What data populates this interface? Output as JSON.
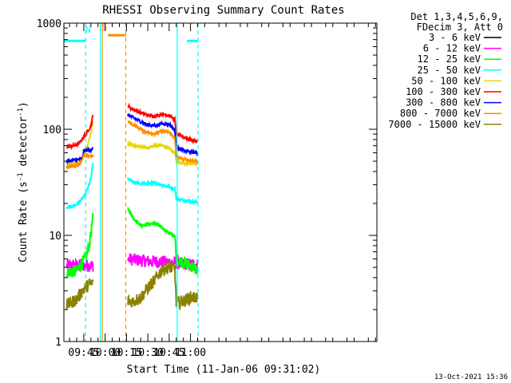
{
  "chart_data": {
    "type": "line",
    "title": "RHESSI Observing Summary Count Rates",
    "xlabel": "Start Time (11-Jan-06 09:31:02)",
    "ylabel_main": "Count Rate (s",
    "ylabel_sup1": "-1",
    "ylabel_mid": " detector",
    "ylabel_sup2": "-1",
    "ylabel_end": ")",
    "yscale": "log",
    "ylim": [
      1,
      1000
    ],
    "xlim_min": [
      571,
      791
    ],
    "yticks": [
      {
        "value": 1,
        "label": "1"
      },
      {
        "value": 10,
        "label": "10"
      },
      {
        "value": 100,
        "label": "100"
      },
      {
        "value": 1000,
        "label": "1000"
      }
    ],
    "xticks": [
      {
        "min": 585,
        "label": "09:45"
      },
      {
        "min": 600,
        "label": "10:00"
      },
      {
        "min": 615,
        "label": "10:15"
      },
      {
        "min": 630,
        "label": "10:30"
      },
      {
        "min": 645,
        "label": "10:45"
      },
      {
        "min": 660,
        "label": "11:00"
      }
    ],
    "legend_header": [
      "Det 1,3,4,5,6,9,",
      "FDecim 3, Att 0"
    ],
    "series": [
      {
        "name": "3 - 6 keV",
        "color": "#000000",
        "segments": []
      },
      {
        "name": "6 - 12 keV",
        "color": "#ff00ff",
        "segments": [
          {
            "x": [
              573,
              585,
              588,
              590,
              591.5
            ],
            "y": [
              5.2,
              5.2,
              5.2,
              5.2,
              5.2
            ]
          },
          {
            "x": [
              616,
              630,
              645,
              655,
              665
            ],
            "y": [
              6.0,
              5.7,
              5.6,
              5.4,
              5.3
            ]
          }
        ]
      },
      {
        "name": "12 - 25 keV",
        "color": "#00ff00",
        "segments": [
          {
            "x": [
              573,
              580,
              584,
              587,
              589,
              590.5,
              591.5
            ],
            "y": [
              4.5,
              4.6,
              5.5,
              6.5,
              8.5,
              11.5,
              16
            ]
          },
          {
            "x": [
              616,
              620,
              625,
              630,
              635,
              640,
              645,
              649,
              650,
              655,
              660,
              665
            ],
            "y": [
              18,
              14.5,
              12.5,
              12.7,
              13.0,
              11.8,
              10.5,
              9.8,
              6.0,
              5.6,
              5.2,
              4.7
            ]
          }
        ]
      },
      {
        "name": "25 - 50 keV",
        "color": "#00ffff",
        "segments": [
          {
            "x": [
              573,
              580,
              583,
              586,
              588,
              590,
              591.5
            ],
            "y": [
              18,
              19.5,
              21.5,
              24,
              28,
              34,
              48
            ]
          },
          {
            "x": [
              616,
              620,
              625,
              630,
              635,
              640,
              645,
              649,
              650,
              655,
              660,
              665
            ],
            "y": [
              34,
              32,
              30.5,
              31,
              31,
              30,
              28.5,
              27.5,
              22,
              21.5,
              21,
              20.5
            ]
          }
        ]
      },
      {
        "name": "50 - 100 keV",
        "color": "#e6d600",
        "segments": [
          {
            "x": [
              573,
              578,
              582,
              585,
              587,
              589,
              590.5,
              591.5
            ],
            "y": [
              46,
              48,
              50,
              57,
              67,
              82,
              100,
              120
            ]
          },
          {
            "x": [
              616,
              620,
              625,
              630,
              635,
              640,
              645,
              649,
              650,
              655,
              660,
              665
            ],
            "y": [
              73,
              70,
              68,
              67,
              70,
              70.5,
              66,
              60,
              50,
              48,
              47.5,
              47
            ]
          }
        ]
      },
      {
        "name": "100 - 300 keV",
        "color": "#ff0000",
        "segments": [
          {
            "x": [
              573,
              578,
              582,
              585,
              588,
              590,
              591.5
            ],
            "y": [
              68,
              70,
              74,
              85,
              97,
              108,
              135
            ]
          },
          {
            "x": [
              616,
              620,
              625,
              630,
              635,
              640,
              645,
              649,
              650,
              655,
              660,
              665
            ],
            "y": [
              165,
              153,
              143,
              135,
              133,
              138,
              136,
              122,
              90,
              85,
              80,
              77
            ]
          }
        ]
      },
      {
        "name": "300 - 800 keV",
        "color": "#0000ff",
        "segments": [
          {
            "x": [
              573,
              578,
              582,
              584,
              585,
              590,
              591.5
            ],
            "y": [
              50,
              51,
              52,
              53,
              63,
              64,
              66
            ]
          },
          {
            "x": [
              616,
              620,
              625,
              630,
              635,
              640,
              645,
              649,
              650,
              655,
              660,
              665
            ],
            "y": [
              137,
              128,
              118,
              110,
              108,
              113,
              112,
              98,
              67,
              63,
              61,
              60
            ]
          }
        ]
      },
      {
        "name": "800 - 7000 keV",
        "color": "#ff8c00",
        "segments": [
          {
            "x": [
              573,
              578,
              582,
              585,
              590,
              591.5
            ],
            "y": [
              44,
              45,
              47,
              56,
              56,
              56
            ]
          },
          {
            "x": [
              616,
              620,
              625,
              630,
              635,
              640,
              645,
              649,
              650,
              655,
              660,
              665
            ],
            "y": [
              118,
              110,
              100,
              93,
              91,
              96,
              94,
              82,
              55,
              52,
              51,
              50
            ]
          }
        ]
      },
      {
        "name": "7000 - 15000 keV",
        "color": "#8b8000",
        "segments": [
          {
            "x": [
              573,
              580,
              584,
              588,
              591.5
            ],
            "y": [
              2.2,
              2.5,
              3.0,
              3.4,
              3.6
            ]
          },
          {
            "x": [
              616,
              620,
              625,
              630,
              635,
              640,
              645,
              649,
              650,
              655,
              660,
              665
            ],
            "y": [
              2.4,
              2.4,
              2.6,
              3.2,
              3.8,
              4.8,
              5.0,
              4.9,
              2.3,
              2.4,
              2.6,
              2.6
            ]
          }
        ]
      }
    ],
    "flags": [
      {
        "label": "N",
        "color": "#00ffff",
        "label_min": 588,
        "label_y": 810,
        "bars": [
          {
            "x": [
              571,
              586.3
            ],
            "y": 680
          },
          {
            "x": [
              657.5,
              665.3
            ],
            "y": 680
          }
        ],
        "lines": [
          {
            "x": 586.3,
            "style": "dashed"
          },
          {
            "x": 596.6,
            "style": "solid"
          },
          {
            "x": 650.6,
            "style": "solid"
          },
          {
            "x": 665.3,
            "style": "dashed"
          }
        ]
      },
      {
        "label": "S",
        "color": "#ff8c00",
        "label_min": 599.5,
        "label_y": 860,
        "bars": [
          {
            "x": [
              602,
              614.5
            ],
            "y": 770
          }
        ],
        "lines": [
          {
            "x": 598,
            "style": "solid"
          },
          {
            "x": 614.5,
            "style": "dashed"
          }
        ]
      }
    ]
  },
  "timestamp": "13-Oct-2021 15:36"
}
